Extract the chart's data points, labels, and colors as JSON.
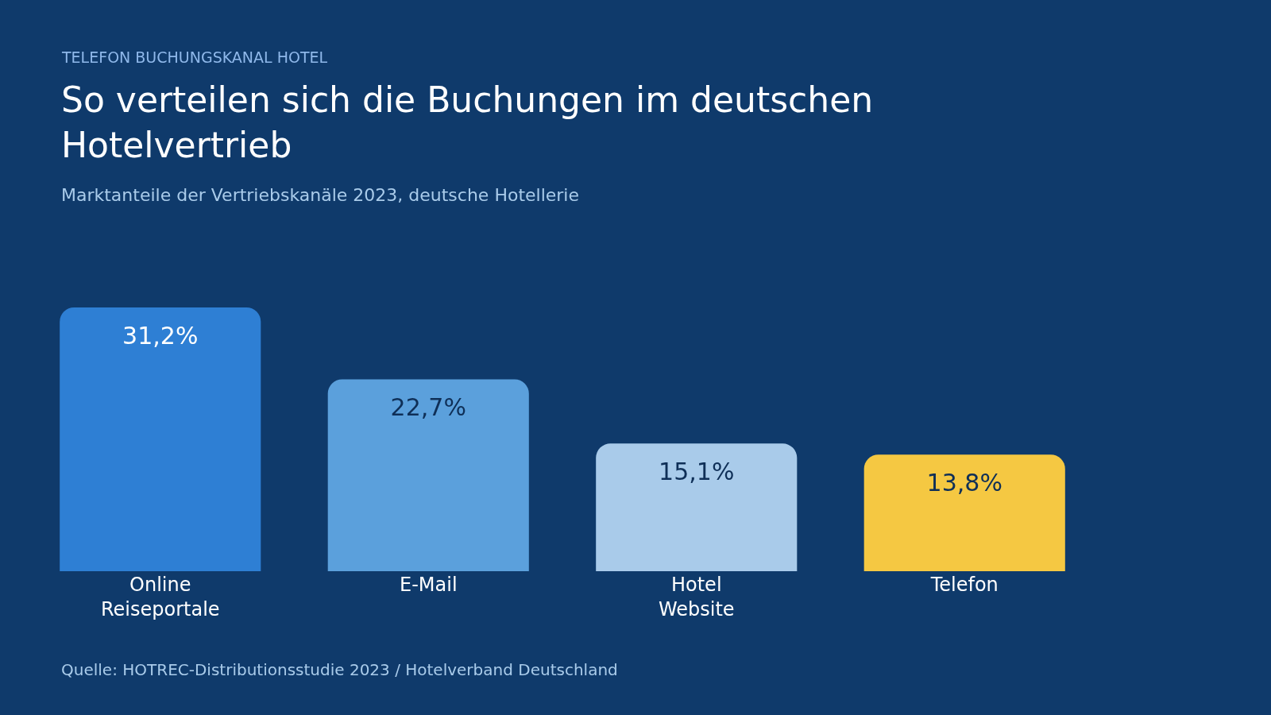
{
  "chart_data": {
    "type": "bar",
    "title": "So verteilen sich die Buchungen im deutschen Hotelvertrieb",
    "subtitle": "Marktanteile der Vertriebskanäle 2023, deutsche Hotellerie",
    "annotations": [
      "TELEFON BUCHUNGSKANAL HOTEL",
      "Quelle: HOTREC-Distributionsstudie 2023 / Hotelverband Deutschland"
    ],
    "categories": [
      "Online Reiseportale",
      "E-Mail",
      "Hotel Website",
      "Telefon"
    ],
    "values": [
      31.2,
      22.7,
      15.1,
      13.8
    ],
    "value_labels": [
      "31,2%",
      "22,7%",
      "15,1%",
      "13,8%"
    ],
    "colors": [
      "#2e7fd4",
      "#5ba0dc",
      "#a9cbea",
      "#f5c842"
    ],
    "grid": false,
    "legend": false
  }
}
